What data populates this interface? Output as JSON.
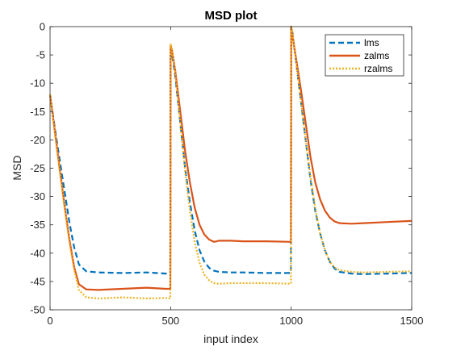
{
  "chart_data": {
    "type": "line",
    "title": "MSD plot",
    "xlabel": "input index",
    "ylabel": "MSD",
    "xlim": [
      0,
      1500
    ],
    "ylim": [
      -50,
      0
    ],
    "xticks": [
      0,
      500,
      1000,
      1500
    ],
    "yticks": [
      0,
      -5,
      -10,
      -15,
      -20,
      -25,
      -30,
      -35,
      -40,
      -45,
      -50
    ],
    "legend_position": "top-right",
    "series": [
      {
        "name": "lms",
        "color": "#0072BD",
        "style": "dashed",
        "x": [
          0,
          20,
          40,
          60,
          80,
          100,
          120,
          150,
          200,
          300,
          400,
          480,
          499,
          500,
          505,
          520,
          540,
          560,
          580,
          600,
          620,
          640,
          660,
          680,
          700,
          750,
          800,
          900,
          999,
          1000,
          1005,
          1020,
          1040,
          1060,
          1080,
          1100,
          1120,
          1140,
          1160,
          1180,
          1200,
          1250,
          1300,
          1400,
          1500
        ],
        "values": [
          -12,
          -18,
          -23.5,
          -29,
          -34.5,
          -39,
          -42,
          -43.2,
          -43.4,
          -43.5,
          -43.4,
          -43.6,
          -43.5,
          -4,
          -4.5,
          -9,
          -17,
          -25,
          -31,
          -36,
          -39.5,
          -41.5,
          -42.6,
          -43.1,
          -43.3,
          -43.4,
          -43.4,
          -43.5,
          -43.5,
          0,
          -1,
          -6,
          -13,
          -20,
          -27,
          -32.5,
          -36.5,
          -39.5,
          -41.5,
          -42.7,
          -43.3,
          -43.6,
          -43.7,
          -43.6,
          -43.5
        ]
      },
      {
        "name": "zalms",
        "color": "#D95319",
        "style": "solid",
        "x": [
          0,
          20,
          40,
          60,
          80,
          100,
          120,
          150,
          200,
          300,
          400,
          480,
          499,
          500,
          505,
          520,
          540,
          560,
          580,
          600,
          620,
          640,
          660,
          680,
          700,
          750,
          800,
          900,
          999,
          1000,
          1005,
          1020,
          1040,
          1060,
          1080,
          1100,
          1120,
          1140,
          1160,
          1180,
          1200,
          1250,
          1300,
          1400,
          1500
        ],
        "values": [
          -12,
          -18.5,
          -25,
          -31.5,
          -37.5,
          -42.5,
          -45.5,
          -46.4,
          -46.5,
          -46.3,
          -46.1,
          -46.3,
          -46.3,
          -3.5,
          -4,
          -8,
          -15,
          -22,
          -27.5,
          -32,
          -35,
          -36.7,
          -37.6,
          -38,
          -37.8,
          -37.8,
          -37.9,
          -37.9,
          -38,
          0,
          -1.5,
          -5.5,
          -11,
          -17,
          -23,
          -27.5,
          -30.5,
          -32.5,
          -33.7,
          -34.4,
          -34.7,
          -34.8,
          -34.7,
          -34.5,
          -34.3
        ]
      },
      {
        "name": "rzalms",
        "color": "#EDB120",
        "style": "dotted",
        "x": [
          0,
          20,
          40,
          60,
          80,
          100,
          120,
          150,
          200,
          300,
          400,
          480,
          499,
          500,
          505,
          520,
          540,
          560,
          580,
          600,
          620,
          640,
          660,
          680,
          700,
          750,
          800,
          900,
          999,
          1000,
          1005,
          1020,
          1040,
          1060,
          1080,
          1100,
          1120,
          1140,
          1160,
          1180,
          1200,
          1250,
          1300,
          1400,
          1500
        ],
        "values": [
          -12,
          -19,
          -25.5,
          -32,
          -38,
          -43,
          -46.5,
          -47.8,
          -48,
          -47.8,
          -48,
          -47.9,
          -48,
          -3,
          -3.8,
          -8.5,
          -17,
          -25.5,
          -32.5,
          -38,
          -41.7,
          -43.8,
          -44.8,
          -45.3,
          -45.4,
          -45.3,
          -45.3,
          -45.3,
          -45.4,
          0,
          -1,
          -6,
          -13,
          -20,
          -26.5,
          -32,
          -36.5,
          -39.5,
          -41.5,
          -42.5,
          -43,
          -43.3,
          -43.4,
          -43.3,
          -43.2
        ]
      }
    ]
  }
}
